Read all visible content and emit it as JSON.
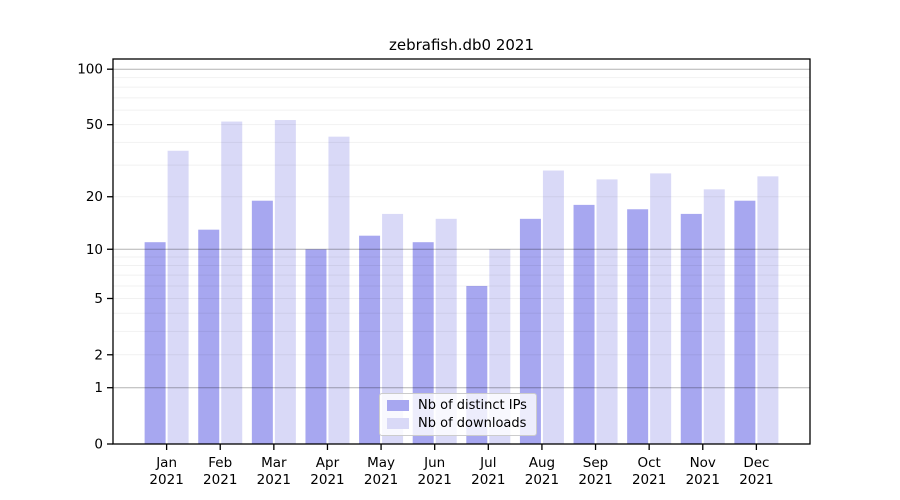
{
  "title": "zebrafish.db0 2021",
  "chart_data": {
    "type": "bar",
    "title": "zebrafish.db0 2021",
    "categories": [
      "Jan",
      "Feb",
      "Mar",
      "Apr",
      "May",
      "Jun",
      "Jul",
      "Aug",
      "Sep",
      "Oct",
      "Nov",
      "Dec"
    ],
    "year_label": "2021",
    "series": [
      {
        "name": "Nb of distinct IPs",
        "color": "#a7a7f0",
        "values": [
          11,
          13,
          19,
          10,
          12,
          11,
          6,
          15,
          18,
          17,
          16,
          19
        ]
      },
      {
        "name": "Nb of downloads",
        "color": "#d9d9f7",
        "values": [
          36,
          52,
          53,
          43,
          16,
          15,
          10,
          28,
          25,
          27,
          22,
          26
        ]
      }
    ],
    "xlabel": "",
    "ylabel": "",
    "yscale": "log1p",
    "ylim": [
      0,
      114
    ],
    "ytick_labels": [
      "0",
      "1",
      "2",
      "5",
      "10",
      "20",
      "50",
      "100"
    ],
    "ytick_values": [
      0,
      1,
      2,
      5,
      10,
      20,
      50,
      100
    ],
    "minor_grid_values": [
      3,
      4,
      6,
      7,
      8,
      9,
      30,
      40,
      60,
      70,
      80,
      90
    ],
    "decade_grid_values": [
      1,
      10,
      100
    ],
    "grid": "horizontal",
    "legend_position": "lower center",
    "colors": {
      "spine": "#000000",
      "decade_gridline": "rgba(0,0,0,0.30)",
      "minor_gridline": "rgba(0,0,0,0.055)",
      "tick_text": "#000000",
      "background": "#ffffff"
    }
  },
  "legend": {
    "items": [
      {
        "label": "Nb of distinct IPs"
      },
      {
        "label": "Nb of downloads"
      }
    ]
  }
}
